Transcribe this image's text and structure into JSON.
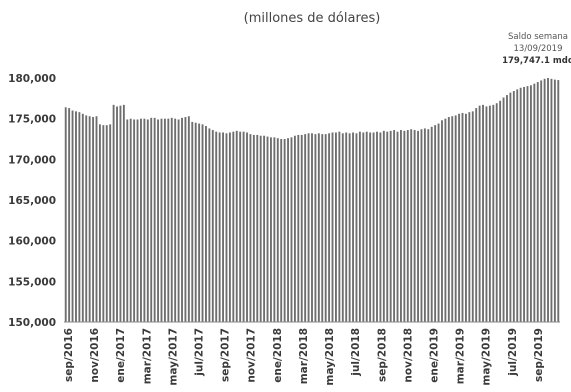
{
  "chart_data": {
    "type": "bar",
    "subtitle": "(millones de dólares)",
    "ylim": [
      150000,
      180000
    ],
    "y_ticks": [
      "150,000",
      "155,000",
      "160,000",
      "165,000",
      "170,000",
      "175,000",
      "180,000"
    ],
    "y_tick_values": [
      150000,
      155000,
      160000,
      165000,
      170000,
      175000,
      180000
    ],
    "x_tick_labels": [
      "sep/2016",
      "nov/2016",
      "ene/2017",
      "mar/2017",
      "may/2017",
      "jul/2017",
      "sep/2017",
      "nov/2017",
      "ene/2018",
      "mar/2018",
      "may/2018",
      "jul/2018",
      "sep/2018",
      "nov/2018",
      "ene/2019",
      "mar/2019",
      "may/2019",
      "jul/2019",
      "sep/2019"
    ],
    "annotation": {
      "line1": "Saldo semana",
      "line2": "13/09/2019",
      "line3": "179,747.1 mdd"
    },
    "bar_color": "#6e6e6e",
    "grid": false,
    "legend": "none",
    "series": [
      {
        "values": [
          176400,
          176300,
          176000,
          175900,
          175800,
          175600,
          175400,
          175300,
          175200,
          175300,
          174300,
          174200,
          174200,
          174300,
          176700,
          176500,
          176600,
          176700,
          174900,
          175000,
          174900,
          174900,
          175000,
          175000,
          174900,
          175100,
          175100,
          174900,
          175000,
          175000,
          175000,
          175100,
          175000,
          174900,
          175100,
          175200,
          175300,
          174600,
          174500,
          174400,
          174300,
          174100,
          173800,
          173600,
          173400,
          173300,
          173300,
          173200,
          173300,
          173400,
          173500,
          173400,
          173400,
          173300,
          173100,
          173000,
          173000,
          172900,
          172900,
          172800,
          172700,
          172700,
          172600,
          172500,
          172500,
          172600,
          172700,
          172900,
          173000,
          173000,
          173100,
          173200,
          173200,
          173100,
          173200,
          173100,
          173100,
          173200,
          173300,
          173300,
          173400,
          173200,
          173300,
          173200,
          173300,
          173200,
          173400,
          173300,
          173400,
          173300,
          173300,
          173400,
          173300,
          173500,
          173400,
          173500,
          173600,
          173400,
          173600,
          173500,
          173600,
          173700,
          173600,
          173500,
          173700,
          173800,
          173700,
          174000,
          174200,
          174400,
          174800,
          175000,
          175200,
          175300,
          175400,
          175600,
          175700,
          175600,
          175800,
          175900,
          176300,
          176600,
          176700,
          176500,
          176600,
          176700,
          176900,
          177200,
          177600,
          177900,
          178200,
          178400,
          178600,
          178800,
          178900,
          179000,
          179100,
          179300,
          179500,
          179700,
          179900,
          180000,
          179900,
          179800,
          179747.1
        ]
      }
    ]
  }
}
